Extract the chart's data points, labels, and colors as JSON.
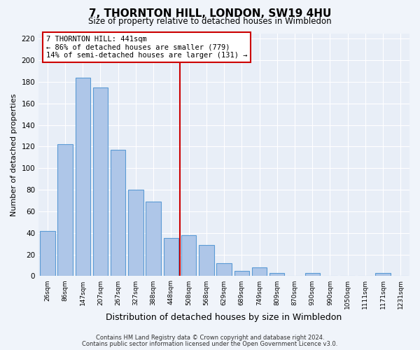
{
  "title": "7, THORNTON HILL, LONDON, SW19 4HU",
  "subtitle": "Size of property relative to detached houses in Wimbledon",
  "xlabel": "Distribution of detached houses by size in Wimbledon",
  "ylabel": "Number of detached properties",
  "bar_labels": [
    "26sqm",
    "86sqm",
    "147sqm",
    "207sqm",
    "267sqm",
    "327sqm",
    "388sqm",
    "448sqm",
    "508sqm",
    "568sqm",
    "629sqm",
    "689sqm",
    "749sqm",
    "809sqm",
    "870sqm",
    "930sqm",
    "990sqm",
    "1050sqm",
    "1111sqm",
    "1171sqm",
    "1231sqm"
  ],
  "bar_values": [
    42,
    122,
    184,
    175,
    117,
    80,
    69,
    35,
    38,
    29,
    12,
    5,
    8,
    3,
    0,
    3,
    0,
    0,
    0,
    3,
    0
  ],
  "bar_color": "#aec6e8",
  "bar_edge_color": "#5b9bd5",
  "vline_x": 7.5,
  "vline_color": "#cc0000",
  "annotation_title": "7 THORNTON HILL: 441sqm",
  "annotation_line1": "← 86% of detached houses are smaller (779)",
  "annotation_line2": "14% of semi-detached houses are larger (131) →",
  "annotation_box_color": "#ffffff",
  "annotation_border_color": "#cc0000",
  "ylim": [
    0,
    225
  ],
  "yticks": [
    0,
    20,
    40,
    60,
    80,
    100,
    120,
    140,
    160,
    180,
    200,
    220
  ],
  "bg_color": "#e8eef7",
  "fig_bg_color": "#f0f4fa",
  "footer1": "Contains HM Land Registry data © Crown copyright and database right 2024.",
  "footer2": "Contains public sector information licensed under the Open Government Licence v3.0."
}
